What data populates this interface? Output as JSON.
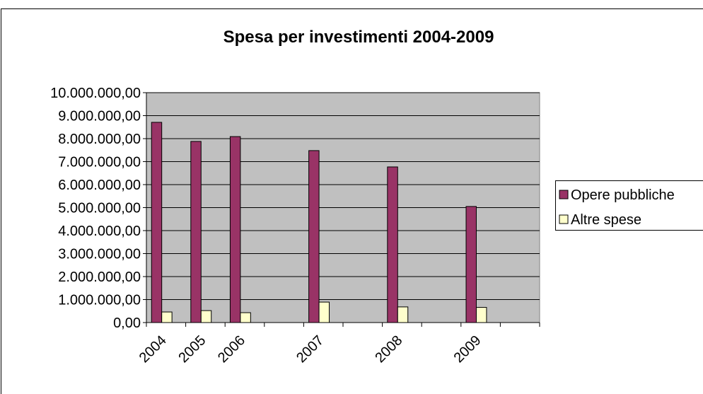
{
  "chart_data": {
    "type": "bar",
    "title": "Spesa per investimenti 2004-2009",
    "categories": [
      "2004",
      "2005",
      "2006",
      null,
      "2007",
      null,
      "2008",
      null,
      "2009",
      null
    ],
    "series": [
      {
        "name": "Opere pubbliche",
        "color": "#993366",
        "values": [
          8710000,
          7880000,
          8090000,
          null,
          7480000,
          null,
          6770000,
          null,
          5050000,
          null
        ]
      },
      {
        "name": "Altre spese",
        "color": "#ffffcc",
        "values": [
          460000,
          520000,
          430000,
          null,
          890000,
          null,
          680000,
          null,
          660000,
          null
        ]
      }
    ],
    "ylim": [
      0,
      10000000
    ],
    "yticks": [
      {
        "value": 0,
        "label": "0,00"
      },
      {
        "value": 1000000,
        "label": "1.000.000,00"
      },
      {
        "value": 2000000,
        "label": "2.000.000,00"
      },
      {
        "value": 3000000,
        "label": "3.000.000,00"
      },
      {
        "value": 4000000,
        "label": "4.000.000,00"
      },
      {
        "value": 5000000,
        "label": "5.000.000,00"
      },
      {
        "value": 6000000,
        "label": "6.000.000,00"
      },
      {
        "value": 7000000,
        "label": "7.000.000,00"
      },
      {
        "value": 8000000,
        "label": "8.000.000,00"
      },
      {
        "value": 9000000,
        "label": "9.000.000,00"
      },
      {
        "value": 10000000,
        "label": "10.000.000,00"
      }
    ],
    "grid": true,
    "legend": "right",
    "plot_background": "#c0c0c0"
  }
}
